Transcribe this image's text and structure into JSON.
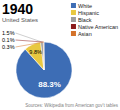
{
  "chart_data": {
    "type": "pie",
    "title": "1940",
    "subtitle": "United States",
    "categories": [
      "White",
      "Hispanic",
      "Black",
      "Native American",
      "Asian"
    ],
    "values": [
      88.3,
      9.8,
      1.5,
      0.1,
      0.3
    ],
    "value_labels": [
      "88.3%",
      "9.8%",
      "1.5%",
      "0.1%",
      "0.3%"
    ],
    "colors": [
      "#3d6db5",
      "#e8c840",
      "#9e9e9e",
      "#8b1a1a",
      "#d4722a"
    ],
    "data_labels": true,
    "legend": "upper right",
    "annotations": [
      "Sources: Wikipedia from American gov't tables"
    ]
  }
}
